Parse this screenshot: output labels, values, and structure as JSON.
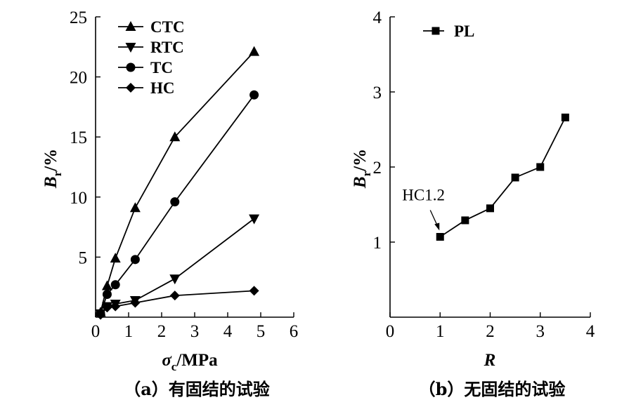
{
  "chart_data": [
    {
      "type": "line",
      "caption": "（a）有固结的试验",
      "xlabel": "σc/MPa",
      "xlabel_main": "σ",
      "xlabel_sub": "c",
      "xlabel_unit": "/MPa",
      "ylabel": "Br/%",
      "ylabel_main": "B",
      "ylabel_sub": "r",
      "ylabel_unit": "/%",
      "xlim": [
        0,
        6
      ],
      "ylim": [
        0,
        25
      ],
      "xticks": [
        0,
        1,
        2,
        3,
        4,
        5,
        6
      ],
      "yticks": [
        5,
        10,
        15,
        20,
        25
      ],
      "xtick_labels": [
        "0",
        "1",
        "2",
        "3",
        "4",
        "5",
        "6"
      ],
      "ytick_labels": [
        "5",
        "10",
        "15",
        "20",
        "25"
      ],
      "legend_position": "top-left",
      "series": [
        {
          "name": "CTC",
          "marker": "triangle-up",
          "x": [
            0.15,
            0.35,
            0.6,
            1.2,
            2.4,
            4.8
          ],
          "y": [
            0.4,
            2.6,
            4.9,
            9.1,
            15.0,
            22.1
          ]
        },
        {
          "name": "RTC",
          "marker": "triangle-down",
          "x": [
            0.15,
            0.35,
            0.6,
            1.2,
            2.4,
            4.8
          ],
          "y": [
            0.3,
            0.9,
            1.1,
            1.4,
            3.2,
            8.2
          ]
        },
        {
          "name": "TC",
          "marker": "circle",
          "x": [
            0.15,
            0.35,
            0.6,
            1.2,
            2.4,
            4.8
          ],
          "y": [
            0.3,
            1.9,
            2.7,
            4.8,
            9.6,
            18.5
          ]
        },
        {
          "name": "HC",
          "marker": "diamond",
          "x": [
            0.15,
            0.35,
            0.6,
            1.2,
            2.4,
            4.8
          ],
          "y": [
            0.2,
            0.8,
            0.9,
            1.2,
            1.8,
            2.2
          ]
        }
      ]
    },
    {
      "type": "line",
      "caption": "（b）无固结的试验",
      "xlabel": "R",
      "ylabel": "Br/%",
      "ylabel_main": "B",
      "ylabel_sub": "r",
      "ylabel_unit": "/%",
      "xlim": [
        0,
        4
      ],
      "ylim": [
        0,
        4
      ],
      "xticks": [
        0,
        1,
        2,
        3,
        4
      ],
      "yticks": [
        1,
        2,
        3,
        4
      ],
      "xtick_labels": [
        "0",
        "1",
        "2",
        "3",
        "4"
      ],
      "ytick_labels": [
        "1",
        "2",
        "3",
        "4"
      ],
      "legend_position": "top-left",
      "annotation": {
        "text": "HC1.2",
        "x": 1.0,
        "y": 1.07
      },
      "series": [
        {
          "name": "PL",
          "marker": "square",
          "x": [
            1.0,
            1.5,
            2.0,
            2.5,
            3.0,
            3.5
          ],
          "y": [
            1.07,
            1.29,
            1.45,
            1.86,
            2.0,
            2.66
          ]
        }
      ]
    }
  ]
}
